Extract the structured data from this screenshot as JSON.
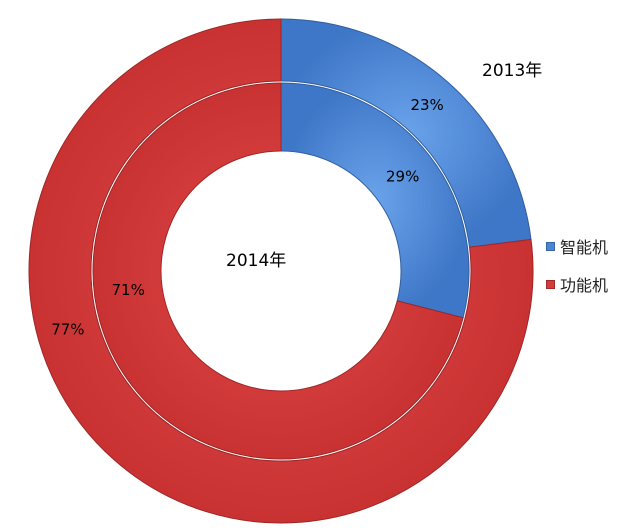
{
  "chart_data": {
    "type": "pie",
    "variant": "nested-donut",
    "categories": [
      "智能机",
      "功能机"
    ],
    "colors": [
      "#4a84d6",
      "#d63a3a"
    ],
    "series": [
      {
        "name": "2013年",
        "ring": "outer",
        "values": [
          23,
          77
        ],
        "labels": [
          "23%",
          "77%"
        ]
      },
      {
        "name": "2014年",
        "ring": "inner",
        "values": [
          29,
          71
        ],
        "labels": [
          "29%",
          "71%"
        ]
      }
    ],
    "legend": {
      "position": "right",
      "items": [
        "智能机",
        "功能机"
      ]
    }
  }
}
